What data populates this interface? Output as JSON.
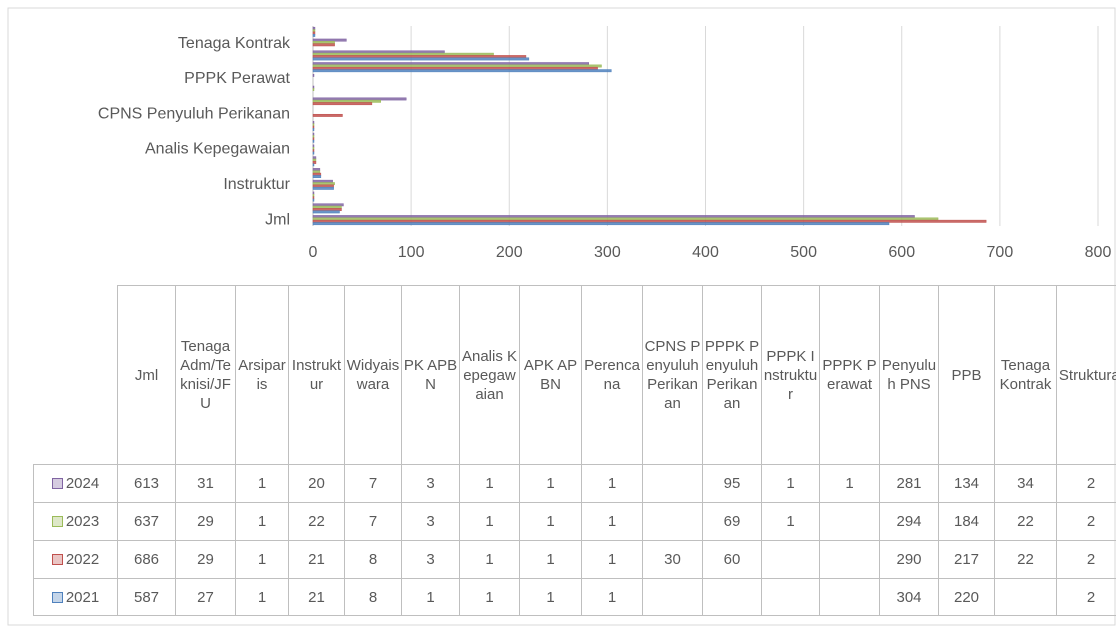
{
  "chart_data": {
    "type": "bar",
    "orientation": "horizontal",
    "categories": [
      "Jml",
      "Tenaga Adm/Teknisi/JFU",
      "Arsiparis",
      "Instruktur",
      "Widyaiswara",
      "PK APBN",
      "Analis Kepegawaian",
      "APK APBN",
      "Perencana",
      "CPNS Penyuluh Perikanan",
      "PPPK Penyuluh Perikanan",
      "PPPK Instruktur",
      "PPPK Perawat",
      "Penyuluh PNS",
      "PPB",
      "Tenaga Kontrak",
      "Struktural"
    ],
    "series": [
      {
        "name": "2024",
        "color": "#8064a2",
        "values": [
          613,
          31,
          1,
          20,
          7,
          3,
          1,
          1,
          1,
          null,
          95,
          1,
          1,
          281,
          134,
          34,
          2
        ]
      },
      {
        "name": "2023",
        "color": "#9bbb59",
        "values": [
          637,
          29,
          1,
          22,
          7,
          3,
          1,
          1,
          1,
          null,
          69,
          1,
          null,
          294,
          184,
          22,
          2
        ]
      },
      {
        "name": "2022",
        "color": "#c0504d",
        "values": [
          686,
          29,
          1,
          21,
          8,
          3,
          1,
          1,
          1,
          30,
          60,
          null,
          null,
          290,
          217,
          22,
          2
        ]
      },
      {
        "name": "2021",
        "color": "#4f81bd",
        "values": [
          587,
          27,
          1,
          21,
          8,
          1,
          1,
          1,
          1,
          null,
          null,
          null,
          null,
          304,
          220,
          null,
          2
        ]
      }
    ],
    "xlim": [
      0,
      800
    ],
    "xticks": [
      0,
      100,
      200,
      300,
      400,
      500,
      600,
      700,
      800
    ],
    "grid": true,
    "data_table": true
  }
}
